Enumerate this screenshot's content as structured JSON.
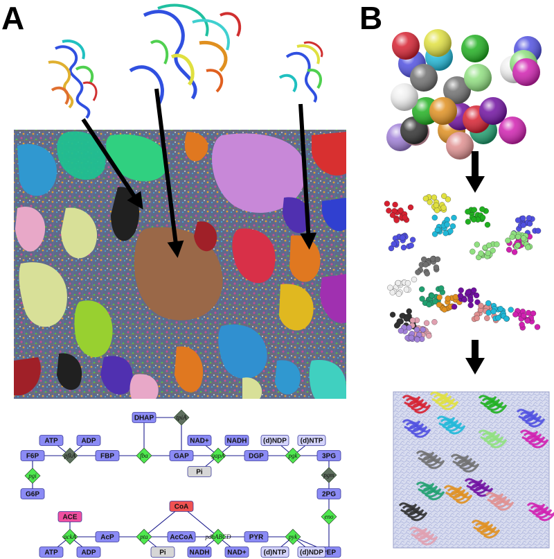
{
  "panels": {
    "a": {
      "letter": "A"
    },
    "b": {
      "letter": "B"
    }
  },
  "pathway": {
    "metabolites": [
      {
        "id": "atp1",
        "label": "ATP",
        "color": "#8b8bf5"
      },
      {
        "id": "adp1",
        "label": "ADP",
        "color": "#8b8bf5"
      },
      {
        "id": "f6p",
        "label": "F6P",
        "color": "#8b8bf5"
      },
      {
        "id": "fbp",
        "label": "FBP",
        "color": "#8b8bf5"
      },
      {
        "id": "g6p",
        "label": "G6P",
        "color": "#8b8bf5"
      },
      {
        "id": "dhap",
        "label": "DHAP",
        "color": "#8b8bf5"
      },
      {
        "id": "gap",
        "label": "GAP",
        "color": "#8b8bf5"
      },
      {
        "id": "nadp1",
        "label": "NAD+",
        "color": "#8b8bf5"
      },
      {
        "id": "nadh1",
        "label": "NADH",
        "color": "#8b8bf5"
      },
      {
        "id": "pi1",
        "label": "Pi",
        "color": "#d6d6d6"
      },
      {
        "id": "dgp",
        "label": "DGP",
        "color": "#8b8bf5"
      },
      {
        "id": "dndp1",
        "label": "(d)NDP",
        "color": "#d4d4fb"
      },
      {
        "id": "dntp1",
        "label": "(d)NTP",
        "color": "#d4d4fb"
      },
      {
        "id": "3pg",
        "label": "3PG",
        "color": "#8b8bf5"
      },
      {
        "id": "2pg",
        "label": "2PG",
        "color": "#8b8bf5"
      },
      {
        "id": "pep",
        "label": "PEP",
        "color": "#8b8bf5"
      },
      {
        "id": "coa",
        "label": "CoA",
        "color": "#f05252"
      },
      {
        "id": "ace",
        "label": "ACE",
        "color": "#f04fa0"
      },
      {
        "id": "atp2",
        "label": "ATP",
        "color": "#8b8bf5"
      },
      {
        "id": "adp2",
        "label": "ADP",
        "color": "#8b8bf5"
      },
      {
        "id": "acp",
        "label": "AcP",
        "color": "#8b8bf5"
      },
      {
        "id": "accoa",
        "label": "AcCoA",
        "color": "#8b8bf5"
      },
      {
        "id": "pi2",
        "label": "Pi",
        "color": "#d6d6d6"
      },
      {
        "id": "nadh2",
        "label": "NADH",
        "color": "#8b8bf5"
      },
      {
        "id": "nadp2",
        "label": "NAD+",
        "color": "#8b8bf5"
      },
      {
        "id": "pyr",
        "label": "PYR",
        "color": "#8b8bf5"
      },
      {
        "id": "dntp2",
        "label": "(d)NTP",
        "color": "#d4d4fb"
      },
      {
        "id": "dndp2",
        "label": "(d)NDP",
        "color": "#d4d4fb"
      }
    ],
    "enzymes": [
      {
        "id": "pfka",
        "label": "pfkA",
        "color": "#5f6f5f"
      },
      {
        "id": "pgi",
        "label": "pgi",
        "color": "#4ee84e"
      },
      {
        "id": "fba",
        "label": "fba",
        "color": "#4ee84e"
      },
      {
        "id": "tpia",
        "label": "tpiA",
        "color": "#5f6f5f"
      },
      {
        "id": "gapa",
        "label": "gapA",
        "color": "#4ee84e"
      },
      {
        "id": "pgk",
        "label": "pgk",
        "color": "#4ee84e"
      },
      {
        "id": "pgm",
        "label": "pgm",
        "color": "#5f6f5f"
      },
      {
        "id": "eno",
        "label": "eno",
        "color": "#4ee84e"
      },
      {
        "id": "acka",
        "label": "ackA",
        "color": "#4ee84e"
      },
      {
        "id": "pta",
        "label": "pta",
        "color": "#4ee84e"
      },
      {
        "id": "pdh",
        "label": "pdhABCD",
        "color": "#4ee84e"
      },
      {
        "id": "pyk",
        "label": "pyk",
        "color": "#4ee84e"
      }
    ],
    "colors": {
      "edge": "#1a1a8c",
      "node_border": "#3a3a9a"
    }
  },
  "sphere_colors": {
    "red": "#d62030",
    "yellow": "#e0e040",
    "green": "#20b020",
    "blue": "#5050e0",
    "cyan": "#20b8d8",
    "light_green": "#90e080",
    "magenta": "#d020b0",
    "gray": "#707070",
    "white": "#eeeeee",
    "black": "#303030",
    "orange": "#e09020",
    "purple": "#7010a0",
    "pink": "#e09090",
    "teal": "#20a070",
    "lavender": "#a080d8",
    "rose": "#e0a0b0"
  }
}
